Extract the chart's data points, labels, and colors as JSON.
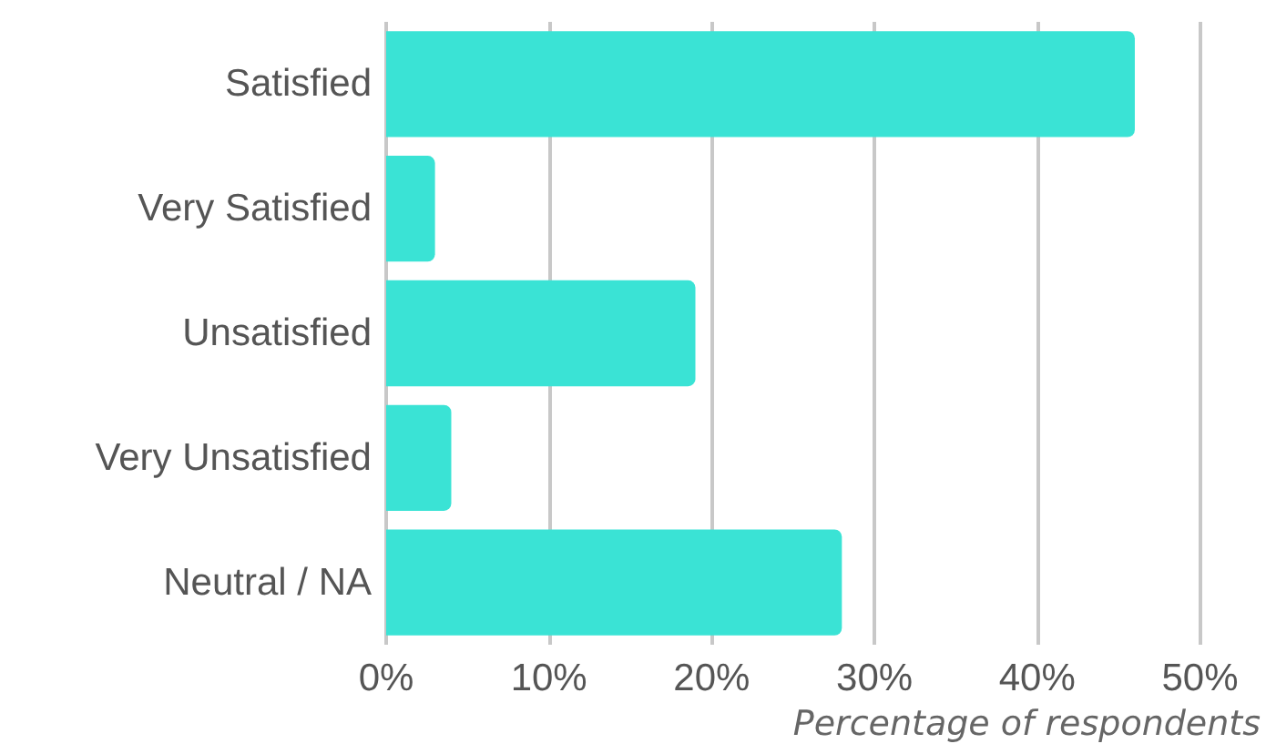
{
  "chart_data": {
    "type": "bar",
    "orientation": "horizontal",
    "xlabel": "Percentage of respondents",
    "categories": [
      "Satisfied",
      "Very Satisfied",
      "Unsatisfied",
      "Very Unsatisfied",
      "Neutral / NA"
    ],
    "values": [
      46,
      3,
      19,
      4,
      28
    ],
    "color": "#3ae3d5",
    "xlim": [
      0,
      50
    ],
    "xticks": [
      {
        "value": 0,
        "label": "0%"
      },
      {
        "value": 10,
        "label": "10%"
      },
      {
        "value": 20,
        "label": "20%"
      },
      {
        "value": 30,
        "label": "30%"
      },
      {
        "value": 40,
        "label": "40%"
      },
      {
        "value": 50,
        "label": "50%"
      }
    ],
    "grid": "x"
  }
}
